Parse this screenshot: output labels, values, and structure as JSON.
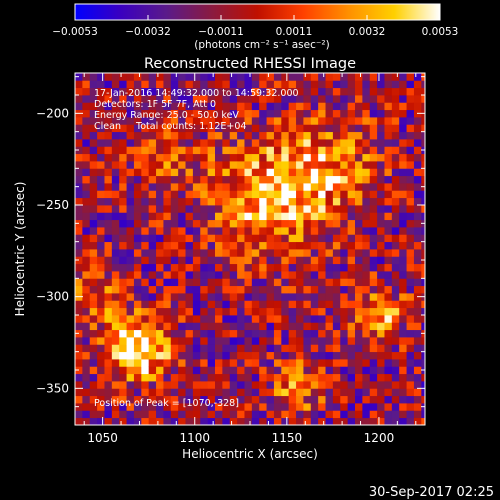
{
  "chart_data": {
    "type": "heatmap",
    "title": "Reconstructed RHESSI Image",
    "xlabel": "Heliocentric X (arcsec)",
    "ylabel": "Heliocentric Y (arcsec)",
    "xlim": [
      1035,
      1225
    ],
    "ylim": [
      -370,
      -178
    ],
    "x_ticks": [
      1050,
      1100,
      1150,
      1200
    ],
    "y_ticks": [
      -350,
      -300,
      -250,
      -200
    ],
    "x_tick_labels": [
      "1050",
      "1100",
      "1150",
      "1200"
    ],
    "y_tick_labels": [
      "−350",
      "−300",
      "−250",
      "−200"
    ],
    "colorbar": {
      "min": -0.0053,
      "max": 0.0053,
      "tick_labels": [
        "−0.0053",
        "−0.0032",
        "−0.0011",
        "0.0011",
        "0.0032",
        "0.0053"
      ],
      "unit_label": "(photons cm⁻² s⁻¹ asec⁻²)",
      "colormap": [
        "#0000ff",
        "#3a00c0",
        "#5a1a8a",
        "#8a1a40",
        "#c01000",
        "#ff4000",
        "#ff9000",
        "#ffd000",
        "#ffffff"
      ]
    },
    "info_lines": [
      "17-Jan-2016 14:49:32.000 to 14:59:32.000",
      "Detectors: 1F 5F 7F, Att 0",
      "Energy Range: 25.0 - 50.0 keV",
      "Clean     Total counts: 1.12E+04"
    ],
    "peak_label": "Position of Peak = [1070,-328]",
    "peak": {
      "x": 1070,
      "y": -328
    },
    "sources": [
      {
        "x": 1070,
        "y": -328,
        "sigma": 12,
        "amp": 1.0
      },
      {
        "x": 1142,
        "y": -245,
        "sigma": 22,
        "amp": 0.75
      },
      {
        "x": 1175,
        "y": -228,
        "sigma": 18,
        "amp": 0.45
      },
      {
        "x": 1200,
        "y": -310,
        "sigma": 10,
        "amp": 0.6
      },
      {
        "x": 1155,
        "y": -350,
        "sigma": 10,
        "amp": 0.5
      },
      {
        "x": 1045,
        "y": -300,
        "sigma": 12,
        "amp": 0.45
      },
      {
        "x": 1085,
        "y": -225,
        "sigma": 14,
        "amp": 0.3
      }
    ]
  },
  "footer": {
    "timestamp": "30-Sep-2017 02:25"
  }
}
